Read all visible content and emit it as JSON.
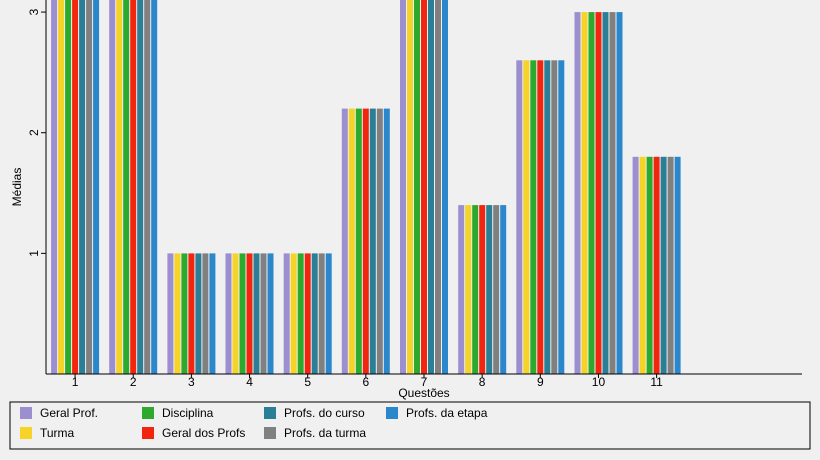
{
  "chart_data": {
    "type": "bar",
    "title": "",
    "xlabel": "Questões",
    "ylabel": "Médias",
    "categories": [
      "1",
      "2",
      "3",
      "4",
      "5",
      "6",
      "7",
      "8",
      "9",
      "10",
      "11"
    ],
    "extra_empty_categories": 2,
    "ylim": [
      0,
      3.1
    ],
    "yticks": [
      1,
      2,
      3
    ],
    "grid": false,
    "legend_position": "bottom",
    "series": [
      {
        "name": "Geral Prof.",
        "color": "#9b8fcf",
        "values": [
          3.2,
          3.2,
          1,
          1,
          1,
          2.2,
          3.2,
          1.4,
          2.6,
          3,
          1.8
        ]
      },
      {
        "name": "Turma",
        "color": "#f5d327",
        "values": [
          3.2,
          3.2,
          1,
          1,
          1,
          2.2,
          3.2,
          1.4,
          2.6,
          3,
          1.8
        ]
      },
      {
        "name": "Disciplina",
        "color": "#2daa2d",
        "values": [
          3.2,
          3.2,
          1,
          1,
          1,
          2.2,
          3.2,
          1.4,
          2.6,
          3,
          1.8
        ]
      },
      {
        "name": "Geral dos Profs",
        "color": "#f2260f",
        "values": [
          3.2,
          3.2,
          1,
          1,
          1,
          2.2,
          3.2,
          1.4,
          2.6,
          3,
          1.8
        ]
      },
      {
        "name": "Profs. do curso",
        "color": "#2a7f97",
        "values": [
          3.2,
          3.2,
          1,
          1,
          1,
          2.2,
          3.2,
          1.4,
          2.6,
          3,
          1.8
        ]
      },
      {
        "name": "Profs. da turma",
        "color": "#808080",
        "values": [
          3.2,
          3.2,
          1,
          1,
          1,
          2.2,
          3.2,
          1.4,
          2.6,
          3,
          1.8
        ]
      },
      {
        "name": "Profs. da etapa",
        "color": "#2b87cc",
        "values": [
          3.2,
          3.2,
          1,
          1,
          1,
          2.2,
          3.2,
          1.4,
          2.6,
          3,
          1.8
        ]
      }
    ]
  }
}
